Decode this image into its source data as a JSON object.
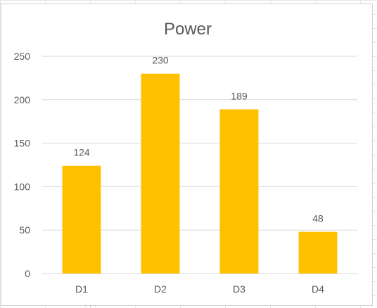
{
  "chart_data": {
    "type": "bar",
    "title": "Power",
    "categories": [
      "D1",
      "D2",
      "D3",
      "D4"
    ],
    "values": [
      124,
      230,
      189,
      48
    ],
    "ylim": [
      0,
      250
    ],
    "yticks": [
      0,
      50,
      100,
      150,
      200,
      250
    ],
    "xlabel": "",
    "ylabel": "",
    "grid": true,
    "legend": "none",
    "bar_color": "#FFC000",
    "gridline_color": "#D9D9D9",
    "text_color": "#595959"
  }
}
